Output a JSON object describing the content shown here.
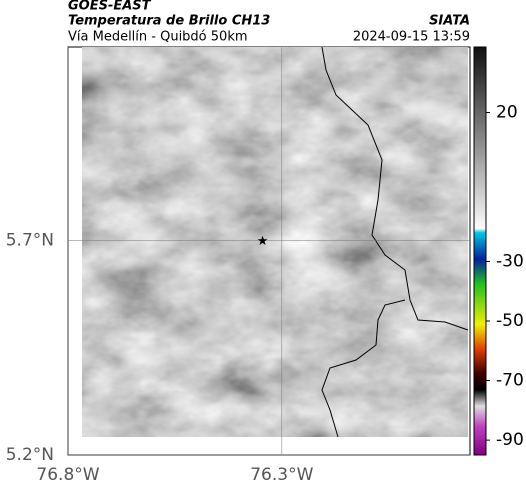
{
  "header": {
    "source": "GOES-EAST",
    "title": "Temperatura de Brillo CH13",
    "route": "Vía Medellín - Quibdó 50km",
    "org": "SIATA",
    "datetime": "2024-09-15 13:59"
  },
  "map": {
    "lonlim": [
      -76.8,
      -75.86
    ],
    "latlim": [
      5.2,
      6.15
    ],
    "lonticks": [
      {
        "value": -76.8,
        "label": "76.8°W"
      },
      {
        "value": -76.3,
        "label": "76.3°W"
      }
    ],
    "latticks": [
      {
        "value": 5.2,
        "label": "5.2°N"
      },
      {
        "value": 5.7,
        "label": "5.7°N"
      }
    ],
    "marker": {
      "lon": -76.345,
      "lat": 5.7
    }
  },
  "colorbar": {
    "lim": [
      -95,
      42
    ],
    "ticks": [
      20,
      -30,
      -50,
      -70,
      -90
    ]
  }
}
